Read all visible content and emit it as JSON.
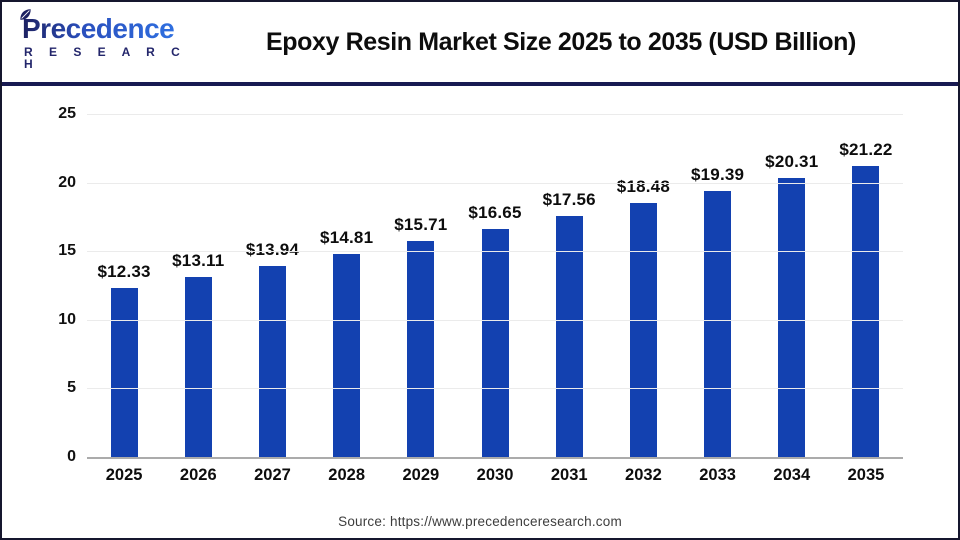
{
  "header": {
    "logo": {
      "name": "Precedence",
      "subtitle": "R E S E A R C H",
      "navy": "#1d2161",
      "blue": "#2f6fe0"
    },
    "title": "Epoxy Resin Market Size 2025 to 2035 (USD Billion)"
  },
  "chart_data": {
    "type": "bar",
    "title": "Epoxy Resin Market Size 2025 to 2035 (USD Billion)",
    "categories": [
      "2025",
      "2026",
      "2027",
      "2028",
      "2029",
      "2030",
      "2031",
      "2032",
      "2033",
      "2034",
      "2035"
    ],
    "values": [
      12.33,
      13.11,
      13.94,
      14.81,
      15.71,
      16.65,
      17.56,
      18.48,
      19.39,
      20.31,
      21.22
    ],
    "bar_labels": [
      "$12.33",
      "$13.11",
      "$13.94",
      "$14.81",
      "$15.71",
      "$16.65",
      "$17.56",
      "$18.48",
      "$19.39",
      "$20.31",
      "$21.22"
    ],
    "xlabel": "",
    "ylabel": "",
    "ylim": [
      0,
      25
    ],
    "yticks": [
      0,
      5,
      10,
      15,
      20,
      25
    ],
    "grid": true,
    "legend": "none",
    "bar_color": "#1341b0",
    "gridline_color": "#ebebeb",
    "axis_line_color": "#ababab"
  },
  "footer": {
    "source": "Source: https://www.precedenceresearch.com"
  }
}
